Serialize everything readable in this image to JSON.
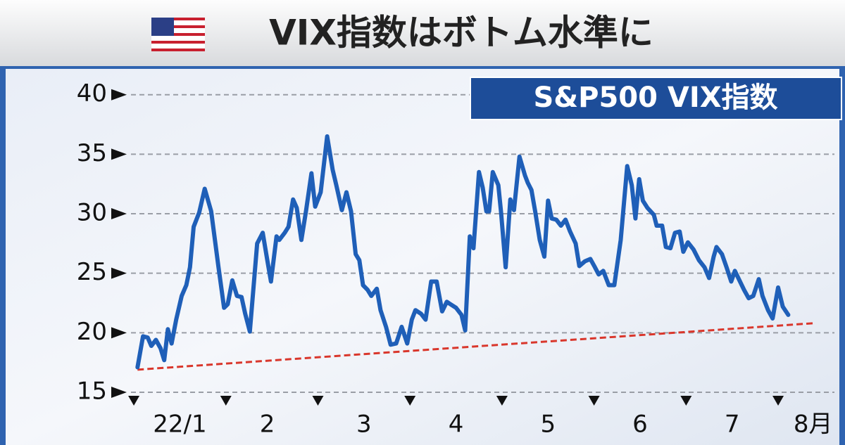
{
  "chart_data": {
    "type": "line",
    "title": "VIX指数はボトム水準に",
    "series": [
      {
        "name": "S&P500 VIX指数",
        "color": "#1f5fb8",
        "x": [
          1.04,
          1.1,
          1.15,
          1.19,
          1.24,
          1.29,
          1.33,
          1.37,
          1.41,
          1.46,
          1.52,
          1.57,
          1.61,
          1.65,
          1.71,
          1.77,
          1.84,
          1.92,
          1.98,
          2.02,
          2.07,
          2.12,
          2.17,
          2.21,
          2.26,
          2.34,
          2.4,
          2.45,
          2.49,
          2.55,
          2.58,
          2.64,
          2.68,
          2.73,
          2.77,
          2.82,
          2.87,
          2.93,
          2.97,
          3.03,
          3.1,
          3.16,
          3.2,
          3.26,
          3.31,
          3.36,
          3.41,
          3.45,
          3.49,
          3.54,
          3.58,
          3.64,
          3.68,
          3.74,
          3.79,
          3.85,
          3.91,
          3.97,
          4.02,
          4.06,
          4.12,
          4.17,
          4.23,
          4.29,
          4.35,
          4.4,
          4.44,
          4.5,
          4.56,
          4.6,
          4.65,
          4.69,
          4.75,
          4.79,
          4.83,
          4.86,
          4.9,
          4.96,
          4.99,
          5.04,
          5.09,
          5.13,
          5.19,
          5.25,
          5.28,
          5.32,
          5.36,
          5.41,
          5.46,
          5.5,
          5.54,
          5.59,
          5.64,
          5.69,
          5.74,
          5.8,
          5.84,
          5.9,
          5.96,
          6.01,
          6.05,
          6.1,
          6.16,
          6.22,
          6.29,
          6.36,
          6.41,
          6.45,
          6.49,
          6.53,
          6.58,
          6.65,
          6.68,
          6.74,
          6.78,
          6.83,
          6.88,
          6.93,
          6.97,
          7.02,
          7.08,
          7.14,
          7.2,
          7.25,
          7.3,
          7.33,
          7.39,
          7.44,
          7.49,
          7.53,
          7.58,
          7.63,
          7.68,
          7.73,
          7.79,
          7.83,
          7.89,
          7.94,
          8.0,
          8.05,
          8.11
        ],
        "values": [
          17.1,
          19.7,
          19.6,
          18.9,
          19.4,
          18.7,
          17.7,
          20.3,
          19.1,
          21.1,
          23.1,
          24.0,
          25.5,
          28.9,
          30.1,
          32.1,
          30.2,
          25.5,
          22.1,
          22.4,
          24.4,
          23.1,
          23.0,
          21.6,
          20.1,
          27.5,
          28.4,
          26.1,
          24.3,
          28.1,
          27.8,
          28.4,
          28.9,
          31.2,
          30.5,
          27.8,
          30.2,
          33.4,
          30.6,
          31.8,
          36.5,
          33.7,
          32.4,
          30.3,
          31.8,
          30.2,
          26.6,
          26.1,
          24.0,
          23.6,
          23.1,
          23.7,
          21.9,
          20.5,
          19.0,
          19.1,
          20.5,
          19.1,
          21.1,
          21.9,
          21.6,
          21.1,
          24.3,
          24.3,
          21.8,
          22.6,
          22.4,
          22.1,
          21.5,
          20.2,
          28.1,
          27.1,
          33.5,
          32.2,
          30.2,
          30.2,
          33.5,
          32.4,
          30.1,
          25.5,
          31.2,
          30.3,
          34.8,
          33.2,
          32.6,
          32.0,
          30.2,
          27.8,
          26.4,
          31.1,
          29.6,
          29.5,
          29.0,
          29.5,
          28.5,
          27.5,
          25.6,
          26.0,
          26.2,
          25.5,
          24.9,
          25.2,
          24.0,
          24.0,
          27.8,
          34.0,
          32.4,
          29.6,
          32.9,
          31.1,
          30.5,
          29.9,
          29.0,
          29.0,
          27.2,
          27.1,
          28.4,
          28.5,
          26.8,
          27.6,
          27.0,
          26.1,
          25.5,
          24.6,
          26.4,
          27.2,
          26.6,
          25.5,
          24.3,
          25.2,
          24.4,
          23.6,
          22.9,
          23.1,
          24.5,
          23.1,
          21.9,
          21.2,
          23.8,
          22.2,
          21.5
        ]
      }
    ],
    "trendline": {
      "color": "#d9362b",
      "x": [
        1.04,
        8.38
      ],
      "values": [
        16.9,
        20.8
      ]
    },
    "xlim": [
      0.77,
      8.65
    ],
    "xticks": [
      1,
      2,
      3,
      4,
      5,
      6,
      7,
      8
    ],
    "xlabels": [
      {
        "value": 1.5,
        "label": "22/1"
      },
      {
        "value": 2.45,
        "label": "2"
      },
      {
        "value": 3.5,
        "label": "3"
      },
      {
        "value": 4.5,
        "label": "4"
      },
      {
        "value": 5.5,
        "label": "5"
      },
      {
        "value": 6.5,
        "label": "6"
      },
      {
        "value": 7.5,
        "label": "7"
      },
      {
        "value": 8.38,
        "label": "8月"
      }
    ],
    "ylim": [
      15,
      41.4
    ],
    "yticks": [
      15,
      20,
      25,
      30,
      35,
      40
    ],
    "grid": true
  }
}
